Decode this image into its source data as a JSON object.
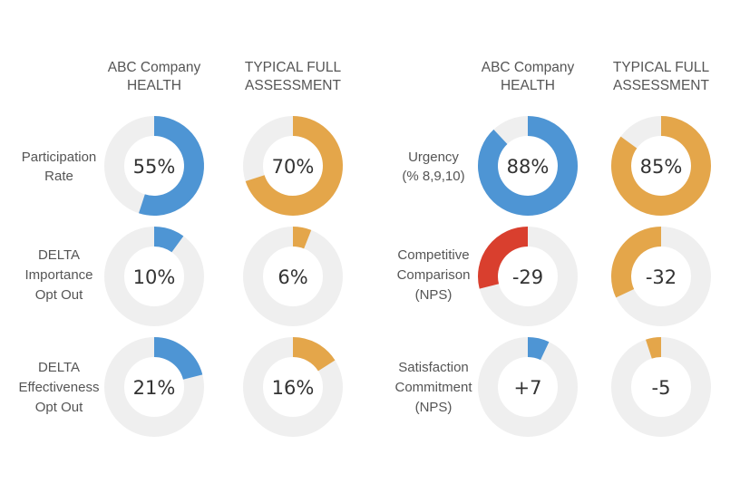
{
  "colors": {
    "blue": "#4e95d4",
    "orange": "#e4a64a",
    "red": "#d93f2e",
    "track": "#efefef"
  },
  "headers": {
    "left_col1": [
      "ABC Company",
      "HEALTH"
    ],
    "left_col2": [
      "TYPICAL FULL",
      "ASSESSMENT"
    ],
    "right_col1": [
      "ABC Company",
      "HEALTH"
    ],
    "right_col2": [
      "TYPICAL FULL",
      "ASSESSMENT"
    ]
  },
  "row_labels": {
    "left": [
      [
        "Participation",
        "Rate"
      ],
      [
        "DELTA",
        "Importance",
        "Opt Out"
      ],
      [
        "DELTA",
        "Effectiveness",
        "Opt Out"
      ]
    ],
    "right": [
      [
        "Urgency",
        "(% 8,9,10)"
      ],
      [
        "Competitive",
        "Comparison",
        "(NPS)"
      ],
      [
        "Satisfaction",
        "Commitment",
        "(NPS)"
      ]
    ]
  },
  "chart_data": {
    "type": "donut-grid",
    "panels": [
      {
        "rows": [
          "Participation Rate",
          "DELTA Importance Opt Out",
          "DELTA Effectiveness Opt Out"
        ],
        "columns": [
          "ABC Company HEALTH",
          "TYPICAL FULL ASSESSMENT"
        ],
        "cells": [
          [
            {
              "label": "55%",
              "value": 55,
              "color": "blue"
            },
            {
              "label": "70%",
              "value": 70,
              "color": "orange"
            }
          ],
          [
            {
              "label": "10%",
              "value": 10,
              "color": "blue"
            },
            {
              "label": "6%",
              "value": 6,
              "color": "orange"
            }
          ],
          [
            {
              "label": "21%",
              "value": 21,
              "color": "blue"
            },
            {
              "label": "16%",
              "value": 16,
              "color": "orange"
            }
          ]
        ]
      },
      {
        "rows": [
          "Urgency (% 8,9,10)",
          "Competitive Comparison (NPS)",
          "Satisfaction Commitment (NPS)"
        ],
        "columns": [
          "ABC Company HEALTH",
          "TYPICAL FULL ASSESSMENT"
        ],
        "cells": [
          [
            {
              "label": "88%",
              "value": 88,
              "color": "blue"
            },
            {
              "label": "85%",
              "value": 85,
              "color": "orange"
            }
          ],
          [
            {
              "label": "-29",
              "value": -29,
              "color": "red"
            },
            {
              "label": "-32",
              "value": -32,
              "color": "orange"
            }
          ],
          [
            {
              "label": "+7",
              "value": 7,
              "color": "blue"
            },
            {
              "label": "-5",
              "value": -5,
              "color": "orange"
            }
          ]
        ]
      }
    ]
  }
}
